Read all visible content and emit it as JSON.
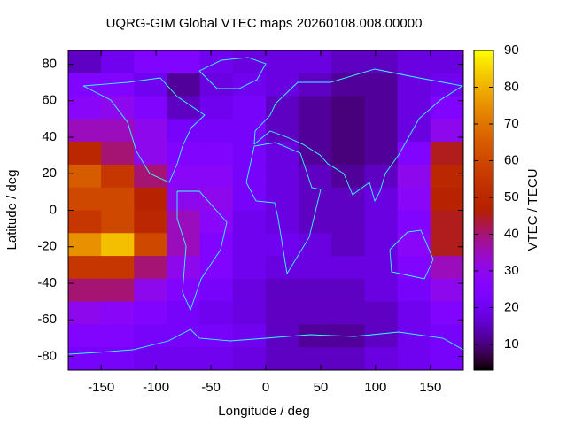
{
  "chart_data": {
    "type": "heatmap",
    "title": "UQRG-GIM Global VTEC maps 20260108.008.00000",
    "x_label": "Longitude / deg",
    "y_label": "Latitude / deg",
    "colorbar_label": "VTEC / TECU",
    "x": [
      -165,
      -135,
      -105,
      -75,
      -45,
      -15,
      15,
      45,
      75,
      105,
      135,
      165
    ],
    "y": [
      81.25,
      68.75,
      56.25,
      43.75,
      31.25,
      18.75,
      6.25,
      -6.25,
      -18.75,
      -31.25,
      -43.75,
      -56.25,
      -68.75,
      -81.25
    ],
    "values": [
      [
        15,
        20,
        25,
        25,
        20,
        18,
        18,
        18,
        15,
        15,
        18,
        18
      ],
      [
        25,
        25,
        20,
        12,
        18,
        20,
        18,
        15,
        12,
        12,
        18,
        20
      ],
      [
        28,
        30,
        25,
        15,
        20,
        22,
        15,
        12,
        10,
        12,
        18,
        25
      ],
      [
        35,
        35,
        30,
        22,
        22,
        22,
        15,
        12,
        10,
        12,
        18,
        30
      ],
      [
        50,
        40,
        30,
        25,
        25,
        22,
        18,
        12,
        10,
        12,
        25,
        45
      ],
      [
        65,
        55,
        40,
        28,
        28,
        22,
        18,
        15,
        12,
        15,
        30,
        50
      ],
      [
        60,
        60,
        48,
        30,
        30,
        22,
        18,
        15,
        15,
        18,
        28,
        48
      ],
      [
        55,
        60,
        50,
        35,
        28,
        20,
        18,
        15,
        15,
        18,
        25,
        45
      ],
      [
        75,
        82,
        60,
        35,
        25,
        20,
        20,
        18,
        15,
        18,
        28,
        45
      ],
      [
        55,
        55,
        40,
        30,
        25,
        20,
        18,
        18,
        18,
        18,
        25,
        35
      ],
      [
        40,
        40,
        30,
        25,
        22,
        18,
        15,
        15,
        15,
        18,
        22,
        30
      ],
      [
        30,
        28,
        25,
        22,
        20,
        18,
        15,
        15,
        15,
        15,
        20,
        25
      ],
      [
        25,
        25,
        22,
        22,
        22,
        20,
        15,
        12,
        12,
        15,
        20,
        22
      ],
      [
        22,
        22,
        20,
        20,
        20,
        18,
        15,
        15,
        15,
        18,
        20,
        22
      ]
    ],
    "xlim": [
      -180,
      180
    ],
    "ylim": [
      -87.5,
      87.5
    ],
    "xticks": [
      -150,
      -100,
      -50,
      0,
      50,
      100,
      150
    ],
    "yticks": [
      -80,
      -60,
      -40,
      -20,
      0,
      20,
      40,
      60,
      80
    ],
    "zlim": [
      3,
      90
    ],
    "zticks": [
      10,
      20,
      30,
      40,
      50,
      60,
      70,
      80,
      90
    ],
    "colormap": "gnuplot"
  }
}
